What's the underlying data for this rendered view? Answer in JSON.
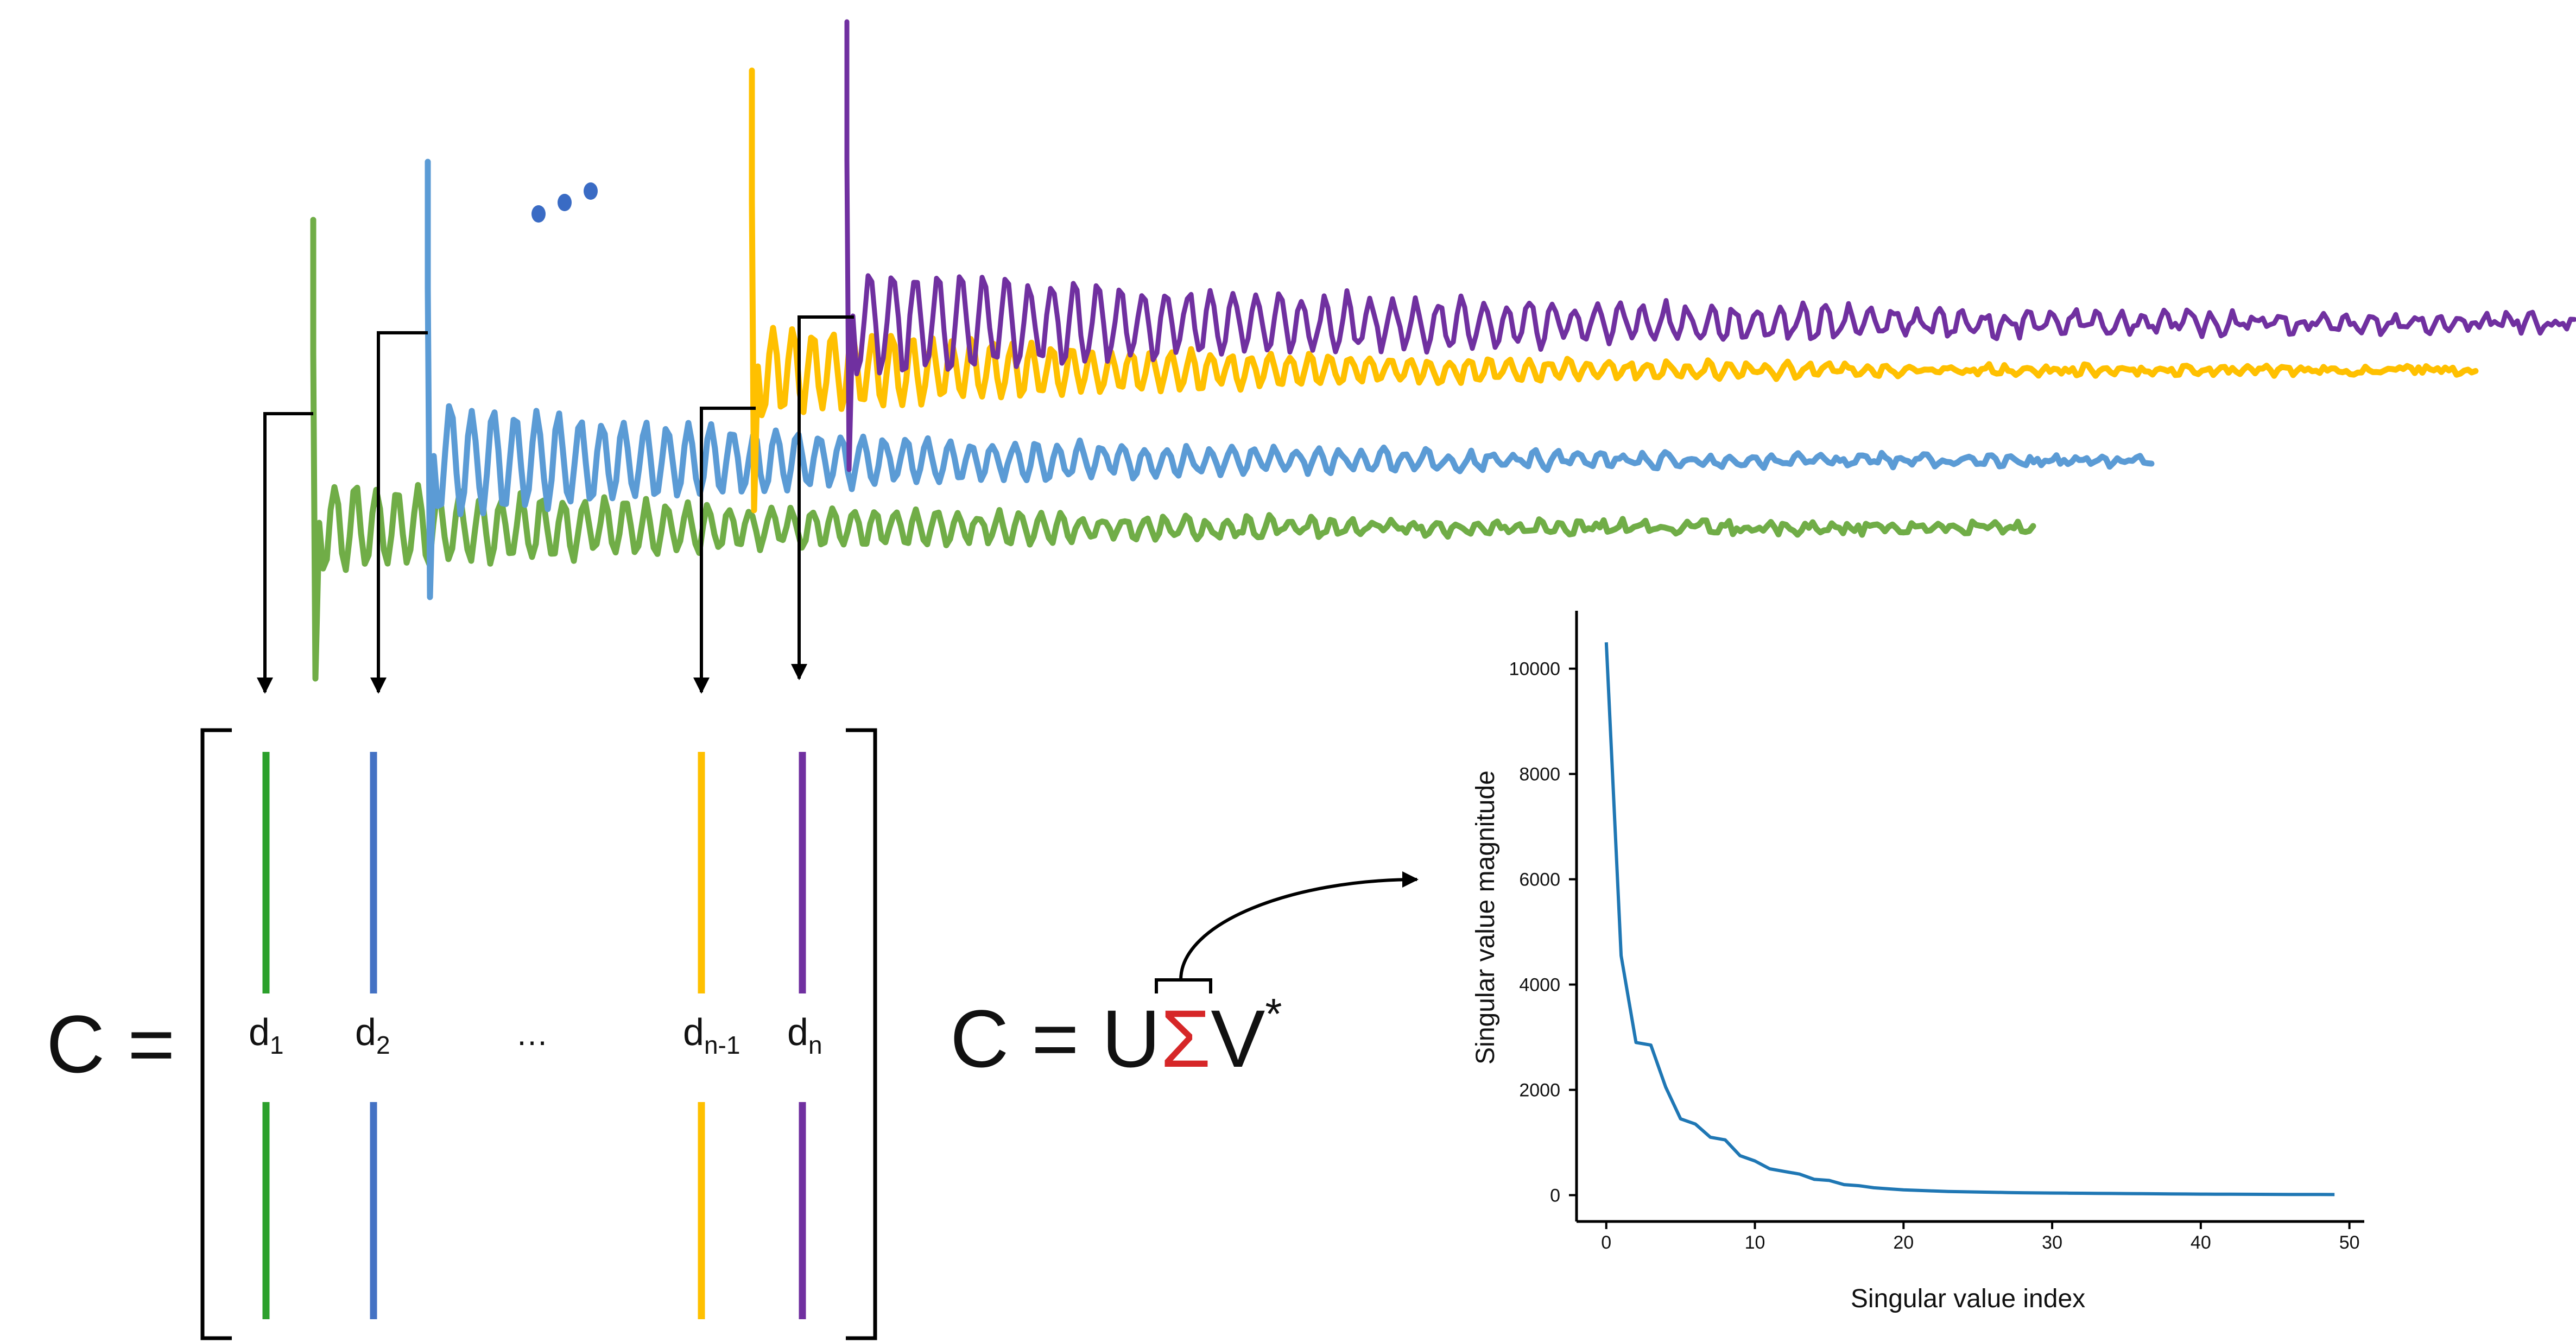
{
  "colors": {
    "green": "#70ad47",
    "blue": "#5b9bd5",
    "yellow": "#ffc000",
    "purple": "#7030a0",
    "matrix_green": "#2ca02c",
    "matrix_blue": "#4472c4",
    "sigma_red": "#d62728",
    "chart_line": "#1f77b4",
    "dots": "#3a6bc4"
  },
  "matrix_equation": {
    "lhs": "C =",
    "columns": [
      {
        "base": "d",
        "sub": "1"
      },
      {
        "base": "d",
        "sub": "2"
      },
      {
        "base": "…",
        "sub": ""
      },
      {
        "base": "d",
        "sub": "n-1"
      },
      {
        "base": "d",
        "sub": "n"
      }
    ]
  },
  "svd_equation": {
    "prefix": "C = U",
    "sigma": "Σ",
    "v": "V",
    "superscript": "*"
  },
  "chart_data": {
    "type": "line",
    "xlabel": "Singular value index",
    "ylabel": "Singular value magnitude",
    "xlim": [
      -2,
      51
    ],
    "ylim": [
      -500,
      11100
    ],
    "xticks": [
      0,
      10,
      20,
      30,
      40,
      50
    ],
    "yticks": [
      0,
      2000,
      4000,
      6000,
      8000,
      10000
    ],
    "grid": false,
    "x": [
      0,
      1,
      2,
      3,
      4,
      5,
      6,
      7,
      8,
      9,
      10,
      11,
      12,
      13,
      14,
      15,
      16,
      17,
      18,
      19,
      20,
      21,
      22,
      23,
      24,
      25,
      26,
      27,
      28,
      29,
      30,
      31,
      32,
      33,
      34,
      35,
      36,
      37,
      38,
      39,
      40,
      41,
      42,
      43,
      44,
      45,
      46,
      47,
      48,
      49
    ],
    "series": [
      {
        "values": [
          10500,
          4550,
          2900,
          2850,
          2050,
          1450,
          1350,
          1100,
          1050,
          750,
          650,
          500,
          450,
          400,
          300,
          280,
          200,
          180,
          140,
          120,
          100,
          90,
          80,
          70,
          65,
          60,
          55,
          50,
          45,
          42,
          40,
          38,
          36,
          34,
          32,
          30,
          28,
          26,
          24,
          22,
          20,
          19,
          18,
          17,
          16,
          15,
          14,
          13,
          12,
          11
        ]
      }
    ]
  }
}
